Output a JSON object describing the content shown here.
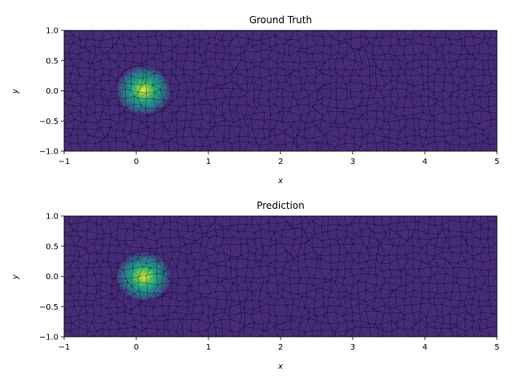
{
  "chart_data": [
    {
      "type": "heatmap",
      "title": "Ground Truth",
      "xlabel": "x",
      "ylabel": "y",
      "xlim": [
        -1,
        5
      ],
      "ylim": [
        -1,
        1
      ],
      "xticks": [
        "−1",
        "0",
        "1",
        "2",
        "3",
        "4",
        "5"
      ],
      "yticks": [
        "1.0",
        "0.5",
        "0.0",
        "−0.5",
        "−1.0"
      ],
      "mesh": "triangular",
      "colormap": "viridis",
      "peak_center": [
        0.1,
        0.0
      ],
      "peak_radius": 0.45,
      "grid": false
    },
    {
      "type": "heatmap",
      "title": "Prediction",
      "xlabel": "x",
      "ylabel": "y",
      "xlim": [
        -1,
        5
      ],
      "ylim": [
        -1,
        1
      ],
      "xticks": [
        "−1",
        "0",
        "1",
        "2",
        "3",
        "4",
        "5"
      ],
      "yticks": [
        "1.0",
        "0.5",
        "0.0",
        "−0.5",
        "−1.0"
      ],
      "mesh": "triangular",
      "colormap": "viridis",
      "peak_center": [
        0.1,
        0.0
      ],
      "peak_radius": 0.45,
      "grid": false
    }
  ],
  "colors": {
    "background_field": "#440154",
    "mid": "#31688e",
    "teal": "#21918c",
    "green": "#5ec962",
    "peak": "#fde725"
  }
}
